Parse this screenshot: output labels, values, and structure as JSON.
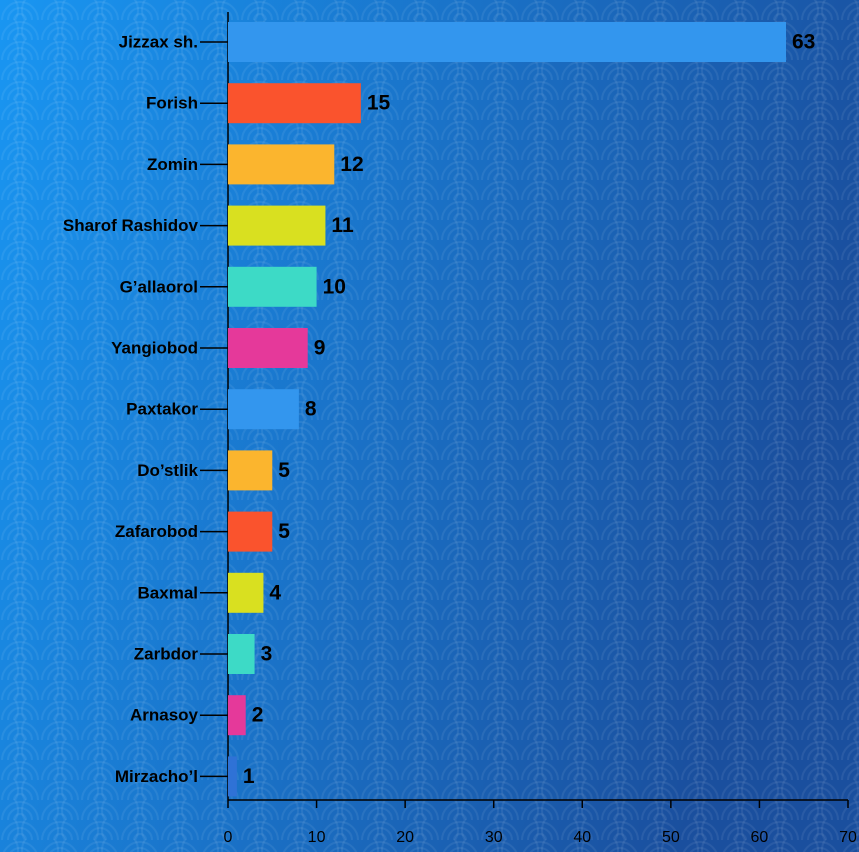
{
  "chart_data": {
    "type": "barh",
    "categories": [
      "Jizzax sh.",
      "Forish",
      "Zomin",
      "Sharof Rashidov",
      "G’allaorol",
      "Yangiobod",
      "Paxtakor",
      "Do’stlik",
      "Zafarobod",
      "Baxmal",
      "Zarbdor",
      "Arnasoy",
      "Mirzacho’l"
    ],
    "values": [
      63,
      15,
      12,
      11,
      10,
      9,
      8,
      5,
      5,
      4,
      3,
      2,
      1
    ],
    "colors": [
      "#3396ee",
      "#fa532d",
      "#fbb52e",
      "#d9e020",
      "#3ddac6",
      "#e5399a",
      "#3396ee",
      "#fbb52e",
      "#fa532d",
      "#d9e020",
      "#3ddac6",
      "#e5399a",
      "#2f72d6"
    ],
    "xlim": [
      0,
      70
    ],
    "xticks": [
      0,
      10,
      20,
      30,
      40,
      50,
      60,
      70
    ]
  }
}
